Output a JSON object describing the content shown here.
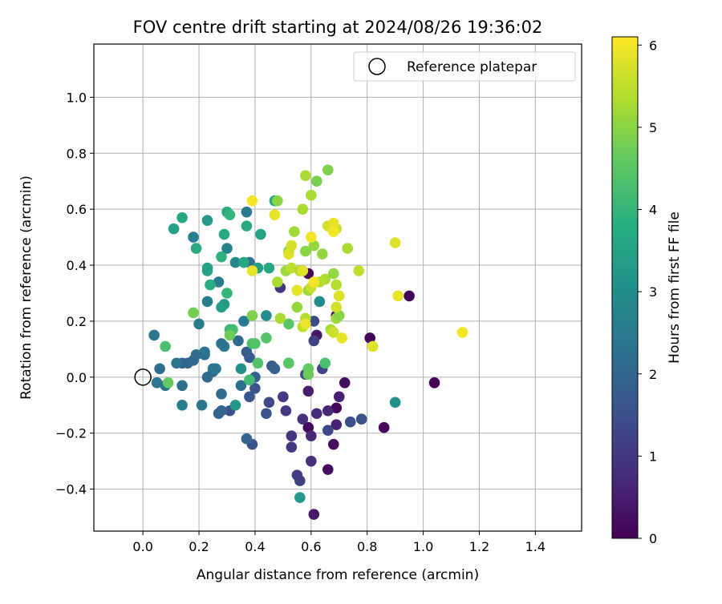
{
  "chart_data": {
    "type": "scatter",
    "title": "FOV centre drift starting at 2024/08/26 19:36:02",
    "xlabel": "Angular distance from reference (arcmin)",
    "ylabel": "Rotation from reference (arcmin)",
    "colorbar_label": "Hours from first FF file",
    "colormap": "viridis",
    "xlim": [
      -0.175,
      1.565
    ],
    "ylim": [
      -0.55,
      1.19
    ],
    "xticks": [
      0.0,
      0.2,
      0.4,
      0.6,
      0.8,
      1.0,
      1.2,
      1.4
    ],
    "xtick_labels": [
      "0.0",
      "0.2",
      "0.4",
      "0.6",
      "0.8",
      "1.0",
      "1.2",
      "1.4"
    ],
    "yticks": [
      -0.4,
      -0.2,
      0.0,
      0.2,
      0.4,
      0.6,
      0.8,
      1.0
    ],
    "ytick_labels": [
      "−0.4",
      "−0.2",
      "0.0",
      "0.2",
      "0.4",
      "0.6",
      "0.8",
      "1.0"
    ],
    "colorbar_range": [
      0,
      6.1
    ],
    "colorbar_ticks": [
      0,
      1,
      2,
      3,
      4,
      5,
      6
    ],
    "colorbar_tick_labels": [
      "0",
      "1",
      "2",
      "3",
      "4",
      "5",
      "6"
    ],
    "grid": true,
    "legend_position": "top-right",
    "legend": [
      {
        "label": "Reference platepar",
        "marker": "open-circle"
      }
    ],
    "reference_point": {
      "x": 0.0,
      "y": 0.0
    },
    "points": [
      [
        0.95,
        0.29,
        0.05
      ],
      [
        1.04,
        -0.02,
        0.05
      ],
      [
        0.81,
        0.14,
        0.05
      ],
      [
        0.86,
        -0.18,
        0.1
      ],
      [
        0.59,
        0.37,
        0.1
      ],
      [
        0.69,
        0.22,
        0.15
      ],
      [
        0.69,
        -0.11,
        0.1
      ],
      [
        0.72,
        -0.02,
        0.2
      ],
      [
        0.66,
        -0.33,
        0.2
      ],
      [
        0.68,
        -0.24,
        0.2
      ],
      [
        0.59,
        -0.18,
        0.15
      ],
      [
        0.61,
        -0.49,
        0.4
      ],
      [
        0.62,
        0.15,
        0.4
      ],
      [
        0.59,
        -0.05,
        0.5
      ],
      [
        0.7,
        -0.07,
        0.55
      ],
      [
        0.69,
        -0.17,
        0.6
      ],
      [
        0.66,
        -0.12,
        0.65
      ],
      [
        0.62,
        -0.13,
        0.75
      ],
      [
        0.6,
        -0.21,
        0.7
      ],
      [
        0.6,
        -0.3,
        0.8
      ],
      [
        0.57,
        -0.15,
        0.85
      ],
      [
        0.53,
        -0.21,
        0.9
      ],
      [
        0.53,
        -0.25,
        0.95
      ],
      [
        0.51,
        -0.12,
        1.0
      ],
      [
        0.5,
        -0.07,
        1.05
      ],
      [
        0.55,
        -0.35,
        1.1
      ],
      [
        0.56,
        -0.37,
        1.15
      ],
      [
        0.61,
        0.13,
        1.2
      ],
      [
        0.64,
        0.03,
        1.25
      ],
      [
        0.66,
        -0.19,
        1.3
      ],
      [
        0.61,
        0.2,
        1.35
      ],
      [
        0.58,
        0.01,
        1.4
      ],
      [
        0.74,
        -0.16,
        1.45
      ],
      [
        0.78,
        -0.15,
        1.5
      ],
      [
        0.49,
        0.32,
        1.0
      ],
      [
        0.45,
        -0.09,
        1.3
      ],
      [
        0.39,
        -0.24,
        1.5
      ],
      [
        0.44,
        -0.13,
        1.6
      ],
      [
        0.31,
        -0.12,
        1.55
      ],
      [
        0.4,
        -0.04,
        1.6
      ],
      [
        0.38,
        -0.07,
        1.65
      ],
      [
        0.38,
        0.07,
        1.7
      ],
      [
        0.37,
        0.09,
        1.75
      ],
      [
        0.4,
        0.0,
        1.85
      ],
      [
        0.46,
        0.04,
        1.8
      ],
      [
        0.47,
        0.03,
        1.9
      ],
      [
        0.37,
        -0.22,
        1.95
      ],
      [
        0.27,
        -0.13,
        1.95
      ],
      [
        0.28,
        -0.12,
        2.0
      ],
      [
        0.25,
        0.02,
        2.05
      ],
      [
        0.23,
        0.0,
        2.1
      ],
      [
        0.28,
        -0.06,
        2.15
      ],
      [
        0.34,
        0.13,
        2.1
      ],
      [
        0.35,
        -0.03,
        2.2
      ],
      [
        0.22,
        0.08,
        2.2
      ],
      [
        0.22,
        0.09,
        2.3
      ],
      [
        0.25,
        0.03,
        2.35
      ],
      [
        0.26,
        0.03,
        2.4
      ],
      [
        0.29,
        0.11,
        2.45
      ],
      [
        0.36,
        0.2,
        2.5
      ],
      [
        0.2,
        0.19,
        2.55
      ],
      [
        0.28,
        0.12,
        2.3
      ],
      [
        0.14,
        -0.1,
        2.6
      ],
      [
        0.21,
        -0.1,
        2.4
      ],
      [
        0.23,
        0.27,
        2.6
      ],
      [
        0.27,
        0.34,
        2.5
      ],
      [
        0.3,
        0.46,
        2.7
      ],
      [
        0.33,
        0.41,
        2.8
      ],
      [
        0.38,
        0.41,
        2.3
      ],
      [
        0.37,
        0.59,
        2.45
      ],
      [
        0.18,
        0.5,
        2.6
      ],
      [
        0.14,
        0.05,
        1.9
      ],
      [
        0.16,
        0.05,
        2.0
      ],
      [
        0.18,
        0.06,
        2.1
      ],
      [
        0.19,
        0.08,
        2.15
      ],
      [
        0.14,
        -0.03,
        2.25
      ],
      [
        0.12,
        0.05,
        2.35
      ],
      [
        0.06,
        0.03,
        2.2
      ],
      [
        0.05,
        -0.02,
        2.4
      ],
      [
        0.08,
        -0.03,
        2.3
      ],
      [
        0.04,
        0.15,
        2.35
      ],
      [
        0.9,
        -0.09,
        3.0
      ],
      [
        0.52,
        0.05,
        2.8
      ],
      [
        0.56,
        -0.43,
        3.2
      ],
      [
        0.63,
        0.27,
        2.9
      ],
      [
        0.35,
        0.03,
        3.1
      ],
      [
        0.33,
        -0.1,
        3.2
      ],
      [
        0.29,
        0.26,
        3.3
      ],
      [
        0.28,
        0.25,
        3.4
      ],
      [
        0.41,
        0.39,
        3.4
      ],
      [
        0.42,
        0.51,
        3.5
      ],
      [
        0.44,
        0.22,
        3.0
      ],
      [
        0.45,
        0.39,
        3.6
      ],
      [
        0.36,
        0.41,
        3.6
      ],
      [
        0.37,
        0.54,
        3.7
      ],
      [
        0.11,
        0.53,
        3.5
      ],
      [
        0.14,
        0.57,
        3.6
      ],
      [
        0.19,
        0.46,
        3.7
      ],
      [
        0.23,
        0.38,
        3.6
      ],
      [
        0.23,
        0.39,
        3.5
      ],
      [
        0.23,
        0.56,
        3.3
      ],
      [
        0.24,
        0.33,
        3.8
      ],
      [
        0.28,
        0.43,
        3.9
      ],
      [
        0.29,
        0.51,
        3.7
      ],
      [
        0.3,
        0.59,
        3.8
      ],
      [
        0.31,
        0.58,
        4.0
      ],
      [
        0.3,
        0.3,
        4.0
      ],
      [
        0.31,
        0.17,
        4.1
      ],
      [
        0.32,
        0.17,
        4.2
      ],
      [
        0.39,
        0.12,
        4.3
      ],
      [
        0.38,
        -0.01,
        4.2
      ],
      [
        0.4,
        0.12,
        4.4
      ],
      [
        0.41,
        0.05,
        4.4
      ],
      [
        0.44,
        0.14,
        4.4
      ],
      [
        0.47,
        0.63,
        3.7
      ],
      [
        0.08,
        0.11,
        4.3
      ],
      [
        0.09,
        -0.02,
        4.6
      ],
      [
        0.18,
        0.23,
        4.8
      ],
      [
        0.31,
        0.15,
        4.7
      ],
      [
        0.39,
        0.22,
        4.9
      ],
      [
        0.52,
        0.19,
        4.5
      ],
      [
        0.52,
        0.05,
        4.5
      ],
      [
        0.52,
        0.45,
        4.9
      ],
      [
        0.59,
        0.03,
        4.6
      ],
      [
        0.59,
        0.01,
        4.7
      ],
      [
        0.65,
        0.05,
        4.3
      ],
      [
        0.66,
        0.74,
        4.9
      ],
      [
        0.62,
        0.7,
        4.8
      ],
      [
        0.58,
        0.72,
        5.3
      ],
      [
        0.6,
        0.65,
        5.3
      ],
      [
        0.57,
        0.6,
        5.3
      ],
      [
        0.58,
        0.45,
        5.0
      ],
      [
        0.61,
        0.47,
        5.1
      ],
      [
        0.64,
        0.44,
        5.1
      ],
      [
        0.65,
        0.35,
        5.3
      ],
      [
        0.68,
        0.37,
        5.1
      ],
      [
        0.69,
        0.33,
        5.4
      ],
      [
        0.69,
        0.21,
        5.2
      ],
      [
        0.7,
        0.22,
        5.0
      ],
      [
        0.73,
        0.46,
        5.3
      ],
      [
        0.48,
        0.63,
        5.0
      ],
      [
        0.48,
        0.34,
        5.3
      ],
      [
        0.49,
        0.21,
        5.3
      ],
      [
        0.51,
        0.38,
        5.2
      ],
      [
        0.53,
        0.39,
        5.5
      ],
      [
        0.54,
        0.52,
        5.2
      ],
      [
        0.55,
        0.31,
        5.4
      ],
      [
        0.55,
        0.25,
        5.1
      ],
      [
        0.56,
        0.38,
        5.4
      ],
      [
        0.57,
        0.18,
        5.5
      ],
      [
        0.58,
        0.21,
        5.4
      ],
      [
        0.59,
        0.31,
        5.2
      ],
      [
        0.6,
        0.32,
        5.6
      ],
      [
        0.63,
        0.34,
        5.4
      ],
      [
        0.67,
        0.17,
        5.3
      ],
      [
        0.68,
        0.16,
        5.6
      ],
      [
        0.69,
        0.25,
        5.7
      ],
      [
        0.7,
        0.29,
        5.8
      ],
      [
        0.69,
        0.53,
        5.6
      ],
      [
        0.66,
        0.54,
        5.7
      ],
      [
        0.68,
        0.55,
        5.9
      ],
      [
        0.68,
        0.52,
        6.0
      ],
      [
        0.6,
        0.5,
        6.0
      ],
      [
        0.61,
        0.34,
        6.0
      ],
      [
        0.71,
        0.14,
        5.9
      ],
      [
        0.77,
        0.38,
        5.5
      ],
      [
        0.82,
        0.11,
        5.8
      ],
      [
        0.9,
        0.48,
        5.8
      ],
      [
        0.91,
        0.29,
        5.9
      ],
      [
        1.14,
        0.16,
        6.0
      ],
      [
        0.39,
        0.63,
        6.0
      ],
      [
        0.39,
        0.38,
        5.9
      ],
      [
        0.47,
        0.58,
        5.9
      ],
      [
        0.52,
        0.44,
        5.8
      ],
      [
        0.53,
        0.47,
        5.7
      ],
      [
        0.57,
        0.38,
        5.8
      ],
      [
        0.55,
        0.31,
        5.9
      ],
      [
        0.58,
        0.19,
        5.9
      ]
    ]
  }
}
